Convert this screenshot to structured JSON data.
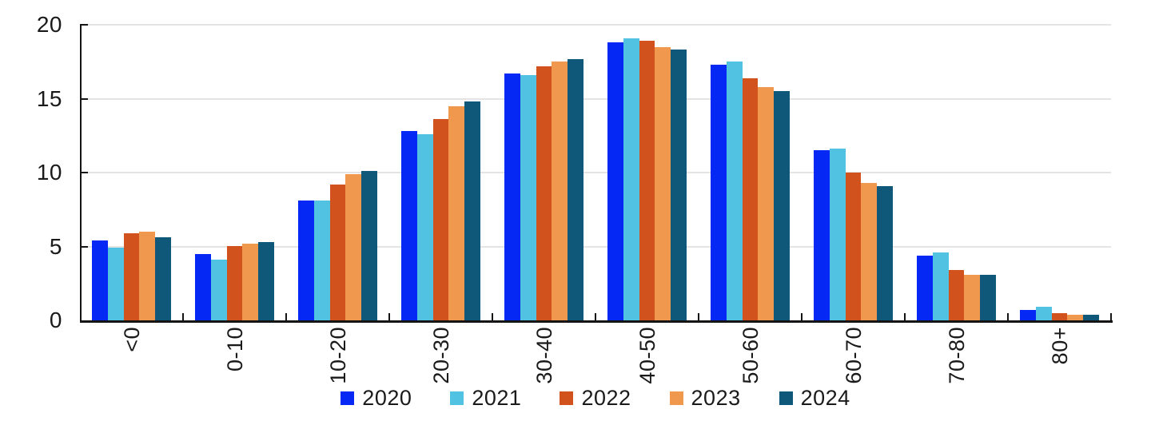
{
  "chart_data": {
    "type": "bar",
    "title": "",
    "xlabel": "",
    "ylabel": "",
    "categories": [
      "<0",
      "0-10",
      "10-20",
      "20-30",
      "30-40",
      "40-50",
      "50-60",
      "60-70",
      "70-80",
      "80+"
    ],
    "series": [
      {
        "name": "2020",
        "color": "#0528f5",
        "values": [
          5.4,
          4.5,
          8.1,
          12.8,
          16.7,
          18.8,
          17.3,
          11.5,
          4.4,
          0.7
        ]
      },
      {
        "name": "2021",
        "color": "#52c2e2",
        "values": [
          4.9,
          4.1,
          8.1,
          12.6,
          16.6,
          19.1,
          17.5,
          11.6,
          4.6,
          0.9
        ]
      },
      {
        "name": "2022",
        "color": "#d1521d",
        "values": [
          5.9,
          5.0,
          9.2,
          13.6,
          17.2,
          18.9,
          16.4,
          10.0,
          3.4,
          0.5
        ]
      },
      {
        "name": "2023",
        "color": "#f0984e",
        "values": [
          6.0,
          5.2,
          9.9,
          14.5,
          17.5,
          18.5,
          15.8,
          9.3,
          3.1,
          0.4
        ]
      },
      {
        "name": "2024",
        "color": "#10587a",
        "values": [
          5.6,
          5.3,
          10.1,
          14.8,
          17.7,
          18.3,
          15.5,
          9.1,
          3.1,
          0.4
        ]
      }
    ],
    "ylim": [
      0,
      20
    ],
    "yticks": [
      0,
      5,
      10,
      15,
      20
    ],
    "grid": "horizontal",
    "legend_position": "bottom",
    "x_tick_label_rotation_deg": 90
  },
  "colors": {
    "background": "#ffffff",
    "grid": "#e4e4e4",
    "axis": "#141414",
    "text": "#1a1a1a"
  }
}
